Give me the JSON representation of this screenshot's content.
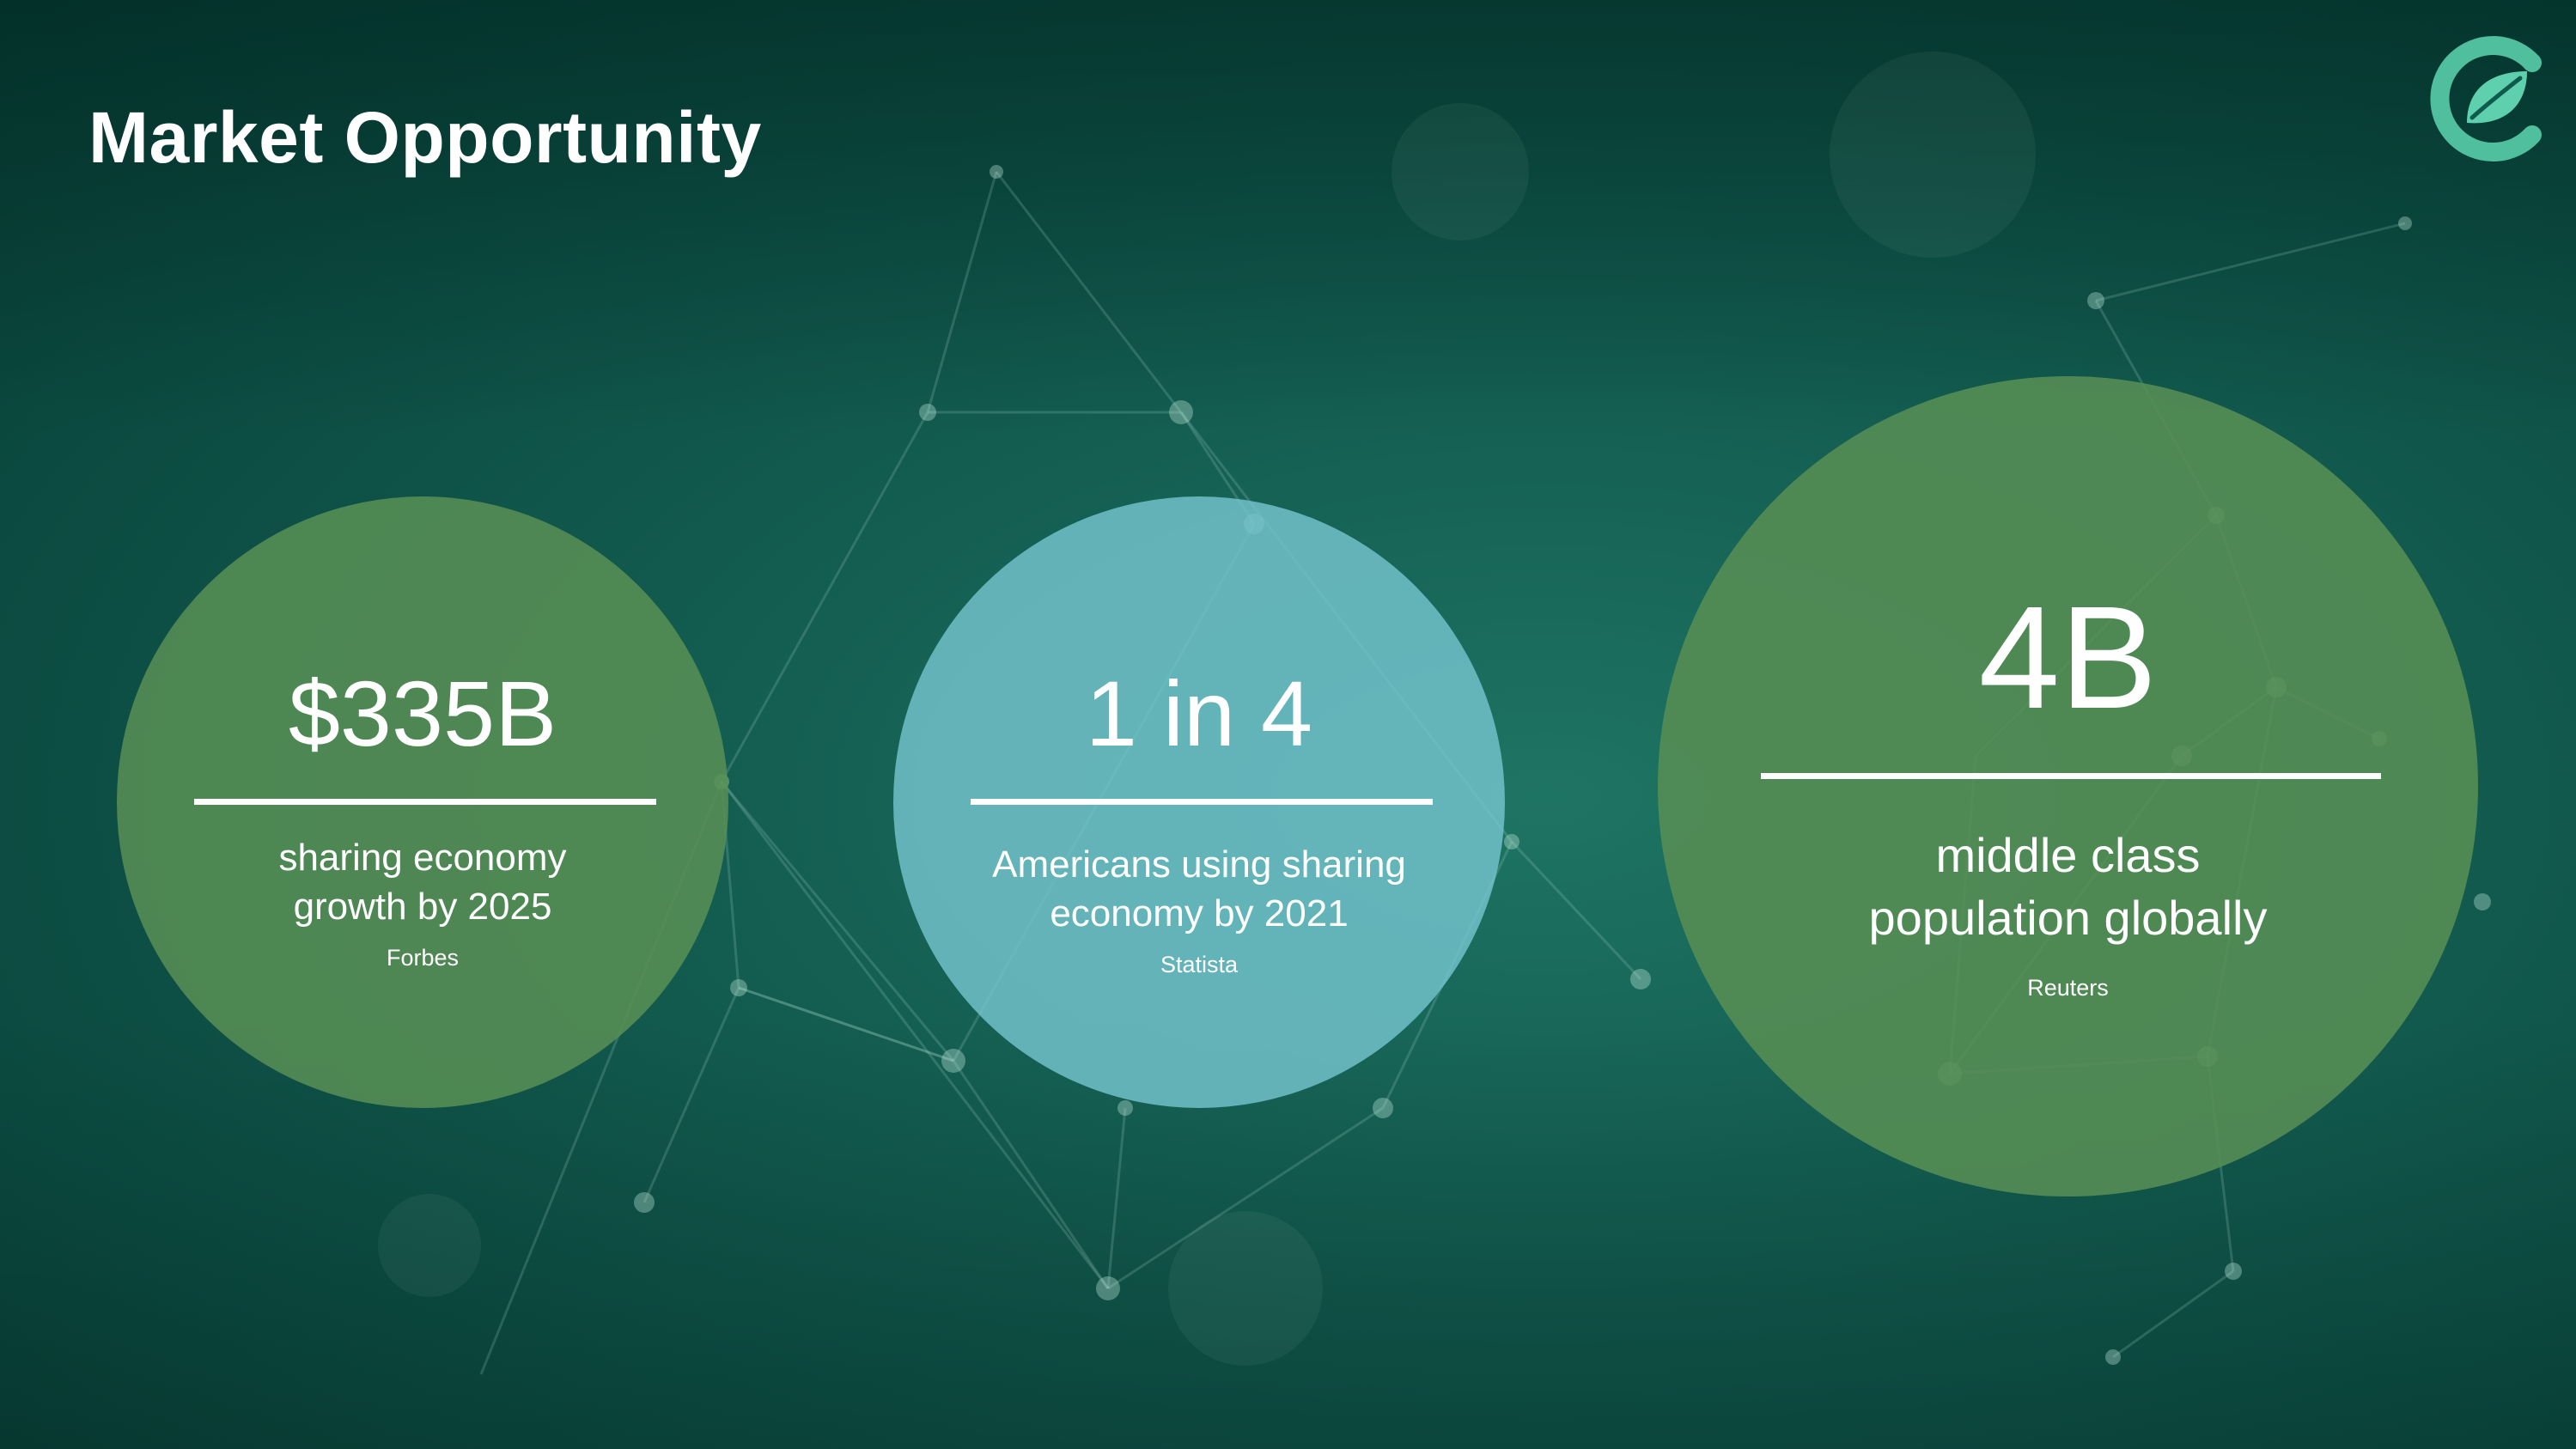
{
  "slide": {
    "title": "Market Opportunity"
  },
  "colors": {
    "background": "#0f5a4d",
    "green_circle": "#568e54",
    "teal_circle": "#74c4ce",
    "logo_teal": "#4fbf9e",
    "text": "#ffffff"
  },
  "stats": [
    {
      "value": "$335B",
      "line1": "sharing economy",
      "line2": "growth by 2025",
      "source": "Forbes"
    },
    {
      "value": "1 in 4",
      "line1": "Americans using sharing",
      "line2": "economy by 2021",
      "source": "Statista"
    },
    {
      "value": "4B",
      "line1": "middle class",
      "line2": "population globally",
      "source": "Reuters"
    }
  ],
  "logo": {
    "icon": "leaf-c-logo-icon"
  }
}
